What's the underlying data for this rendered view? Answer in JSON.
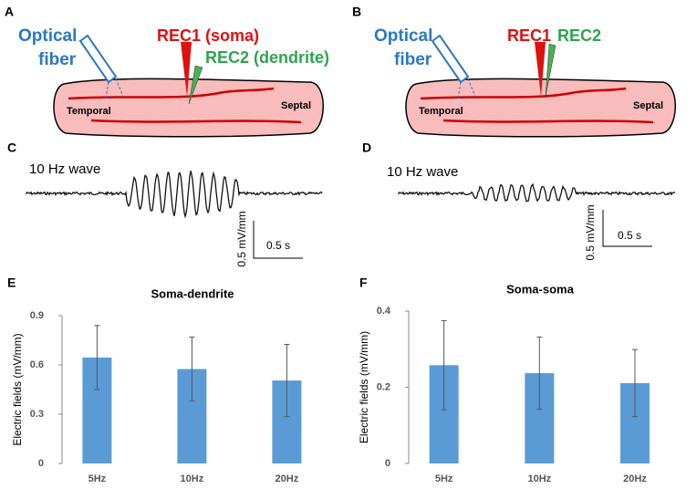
{
  "panel_a": {
    "label": "A",
    "fiber": [
      "Optical",
      "fiber"
    ],
    "rec1": "REC1 (soma)",
    "rec2": "REC2 (dendrite)",
    "left": "Temporal",
    "right": "Septal"
  },
  "panel_b": {
    "label": "B",
    "fiber": [
      "Optical",
      "fiber"
    ],
    "rec1": "REC1",
    "rec2": "REC2",
    "left": "Temporal",
    "right": "Septal"
  },
  "panel_c": {
    "label": "C",
    "title": "10 Hz wave",
    "scale_y": "0.5 mV/mm",
    "scale_x": "0.5 s"
  },
  "panel_d": {
    "label": "D",
    "title": "10 Hz wave",
    "scale_y": "0.5 mV/mm",
    "scale_x": "0.5 s"
  },
  "chart_labels": [
    "E",
    "F"
  ],
  "chart_data": [
    {
      "type": "bar",
      "title": "Soma-dendrite",
      "ylabel": "Electric fields (mV/mm)",
      "categories": [
        "5Hz",
        "10Hz",
        "20Hz"
      ],
      "values": [
        0.645,
        0.575,
        0.505
      ],
      "errors": [
        0.195,
        0.195,
        0.22
      ],
      "color": "#5b9bd5",
      "ylim": [
        0,
        0.9
      ],
      "yticks": [
        0,
        0.3,
        0.6,
        0.9
      ]
    },
    {
      "type": "bar",
      "title": "Soma-soma",
      "ylabel": "Electric fields (mV/mm)",
      "categories": [
        "5Hz",
        "10Hz",
        "20Hz"
      ],
      "values": [
        0.258,
        0.237,
        0.211
      ],
      "errors": [
        0.117,
        0.095,
        0.088
      ],
      "color": "#5b9bd5",
      "ylim": [
        0,
        0.4
      ],
      "yticks": [
        0,
        0.2,
        0.4
      ]
    }
  ]
}
